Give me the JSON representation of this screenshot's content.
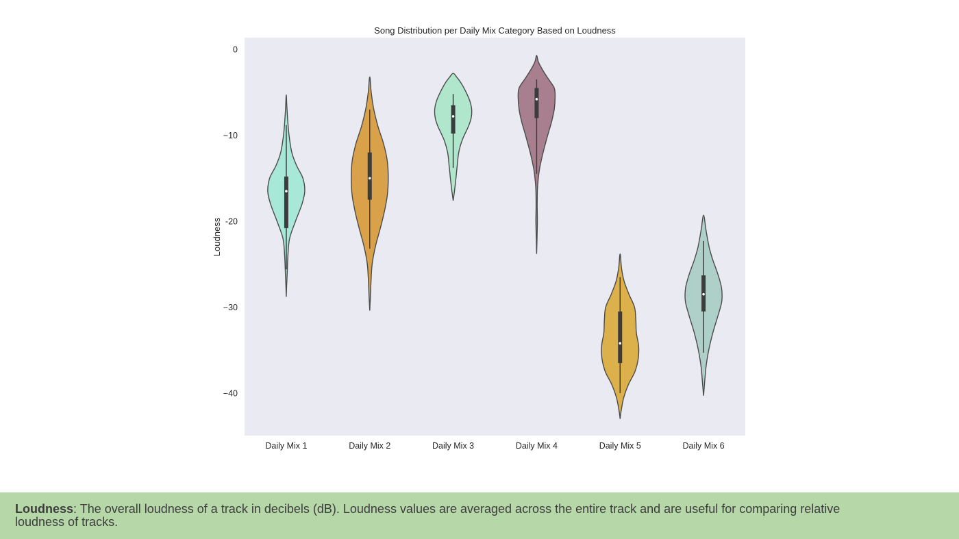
{
  "chart_data": {
    "type": "violin",
    "title": "Song Distribution per Daily Mix Category Based on Loudness",
    "xlabel": "",
    "ylabel": "Loudness",
    "ylim": [
      -45,
      1.5
    ],
    "yticks": [
      0,
      -10,
      -20,
      -30,
      -40
    ],
    "ytick_labels": [
      "0",
      "−10",
      "-20",
      "−30",
      "−40"
    ],
    "grid": false,
    "background": "#eaeaf2",
    "categories": [
      "Daily Mix 1",
      "Daily Mix 2",
      "Daily Mix 3",
      "Daily Mix 4",
      "Daily Mix 5",
      "Daily Mix 6"
    ],
    "colors": [
      "#a8e8d8",
      "#d9a24a",
      "#b0e6cc",
      "#a87f8e",
      "#dcb04a",
      "#aed0c8"
    ],
    "outline_color": "#4a4a4a",
    "violins": [
      {
        "min": -28.8,
        "max": -5.3,
        "q1": -20.8,
        "median": -16.5,
        "q3": -14.8,
        "whisker_low": -25.6,
        "whisker_high": -8.8,
        "profile": [
          [
            -28.8,
            0.0
          ],
          [
            -27.5,
            0.02
          ],
          [
            -26,
            0.05
          ],
          [
            -24,
            0.09
          ],
          [
            -22,
            0.18
          ],
          [
            -20,
            0.5
          ],
          [
            -18,
            0.85
          ],
          [
            -16.5,
            1.0
          ],
          [
            -15,
            0.9
          ],
          [
            -13.5,
            0.55
          ],
          [
            -12,
            0.3
          ],
          [
            -10,
            0.15
          ],
          [
            -8,
            0.07
          ],
          [
            -6.5,
            0.03
          ],
          [
            -5.3,
            0.0
          ]
        ]
      },
      {
        "min": -30.4,
        "max": -3.2,
        "q1": -17.5,
        "median": -15.0,
        "q3": -12.0,
        "whisker_low": -23.2,
        "whisker_high": -7.0,
        "profile": [
          [
            -30.4,
            0.0
          ],
          [
            -29,
            0.03
          ],
          [
            -27,
            0.07
          ],
          [
            -25,
            0.13
          ],
          [
            -23,
            0.3
          ],
          [
            -21,
            0.55
          ],
          [
            -19,
            0.78
          ],
          [
            -17,
            0.95
          ],
          [
            -15,
            1.0
          ],
          [
            -13,
            0.95
          ],
          [
            -11,
            0.75
          ],
          [
            -9,
            0.45
          ],
          [
            -7,
            0.22
          ],
          [
            -5,
            0.08
          ],
          [
            -3.2,
            0.0
          ]
        ]
      },
      {
        "min": -17.6,
        "max": -2.8,
        "q1": -9.8,
        "median": -7.8,
        "q3": -6.5,
        "whisker_low": -13.8,
        "whisker_high": -5.2,
        "profile": [
          [
            -17.6,
            0.0
          ],
          [
            -16.5,
            0.07
          ],
          [
            -15,
            0.15
          ],
          [
            -13.5,
            0.22
          ],
          [
            -12,
            0.3
          ],
          [
            -10.5,
            0.5
          ],
          [
            -9,
            0.82
          ],
          [
            -8,
            0.97
          ],
          [
            -7,
            1.0
          ],
          [
            -6,
            0.9
          ],
          [
            -5,
            0.7
          ],
          [
            -4,
            0.45
          ],
          [
            -3.2,
            0.18
          ],
          [
            -2.8,
            0.0
          ]
        ]
      },
      {
        "min": -23.8,
        "max": -0.7,
        "q1": -8.0,
        "median": -5.8,
        "q3": -4.5,
        "whisker_low": -14.5,
        "whisker_high": -3.5,
        "profile": [
          [
            -23.8,
            0.0
          ],
          [
            -22,
            0.02
          ],
          [
            -20,
            0.04
          ],
          [
            -18,
            0.03
          ],
          [
            -16,
            0.05
          ],
          [
            -14,
            0.15
          ],
          [
            -12,
            0.35
          ],
          [
            -10,
            0.6
          ],
          [
            -8.5,
            0.8
          ],
          [
            -7,
            0.95
          ],
          [
            -5.5,
            1.0
          ],
          [
            -4.5,
            0.95
          ],
          [
            -3.5,
            0.65
          ],
          [
            -2.5,
            0.35
          ],
          [
            -1.5,
            0.1
          ],
          [
            -0.7,
            0.0
          ]
        ]
      },
      {
        "min": -43.0,
        "max": -23.8,
        "q1": -36.5,
        "median": -34.2,
        "q3": -30.5,
        "whisker_low": -40.0,
        "whisker_high": -26.5,
        "profile": [
          [
            -43.0,
            0.0
          ],
          [
            -42,
            0.06
          ],
          [
            -40.5,
            0.2
          ],
          [
            -39,
            0.45
          ],
          [
            -37.5,
            0.8
          ],
          [
            -36,
            0.98
          ],
          [
            -34.5,
            1.0
          ],
          [
            -33,
            0.88
          ],
          [
            -31.5,
            0.85
          ],
          [
            -30,
            0.78
          ],
          [
            -28.5,
            0.48
          ],
          [
            -27,
            0.22
          ],
          [
            -25.5,
            0.08
          ],
          [
            -23.8,
            0.0
          ]
        ]
      },
      {
        "min": -40.3,
        "max": -19.3,
        "q1": -30.5,
        "median": -28.5,
        "q3": -26.3,
        "whisker_low": -35.3,
        "whisker_high": -22.3,
        "profile": [
          [
            -40.3,
            0.0
          ],
          [
            -39,
            0.05
          ],
          [
            -37,
            0.13
          ],
          [
            -35,
            0.28
          ],
          [
            -33,
            0.5
          ],
          [
            -31,
            0.78
          ],
          [
            -29.5,
            0.97
          ],
          [
            -28.5,
            1.0
          ],
          [
            -27.5,
            0.95
          ],
          [
            -26,
            0.75
          ],
          [
            -24.5,
            0.5
          ],
          [
            -23,
            0.3
          ],
          [
            -21,
            0.13
          ],
          [
            -19.3,
            0.0
          ]
        ]
      }
    ]
  },
  "caption": {
    "term": "Loudness",
    "text": ": The overall loudness of a track in decibels (dB). Loudness values are averaged across the entire track and are useful for comparing relative loudness of tracks.",
    "band_color": "#b6d7a8"
  }
}
